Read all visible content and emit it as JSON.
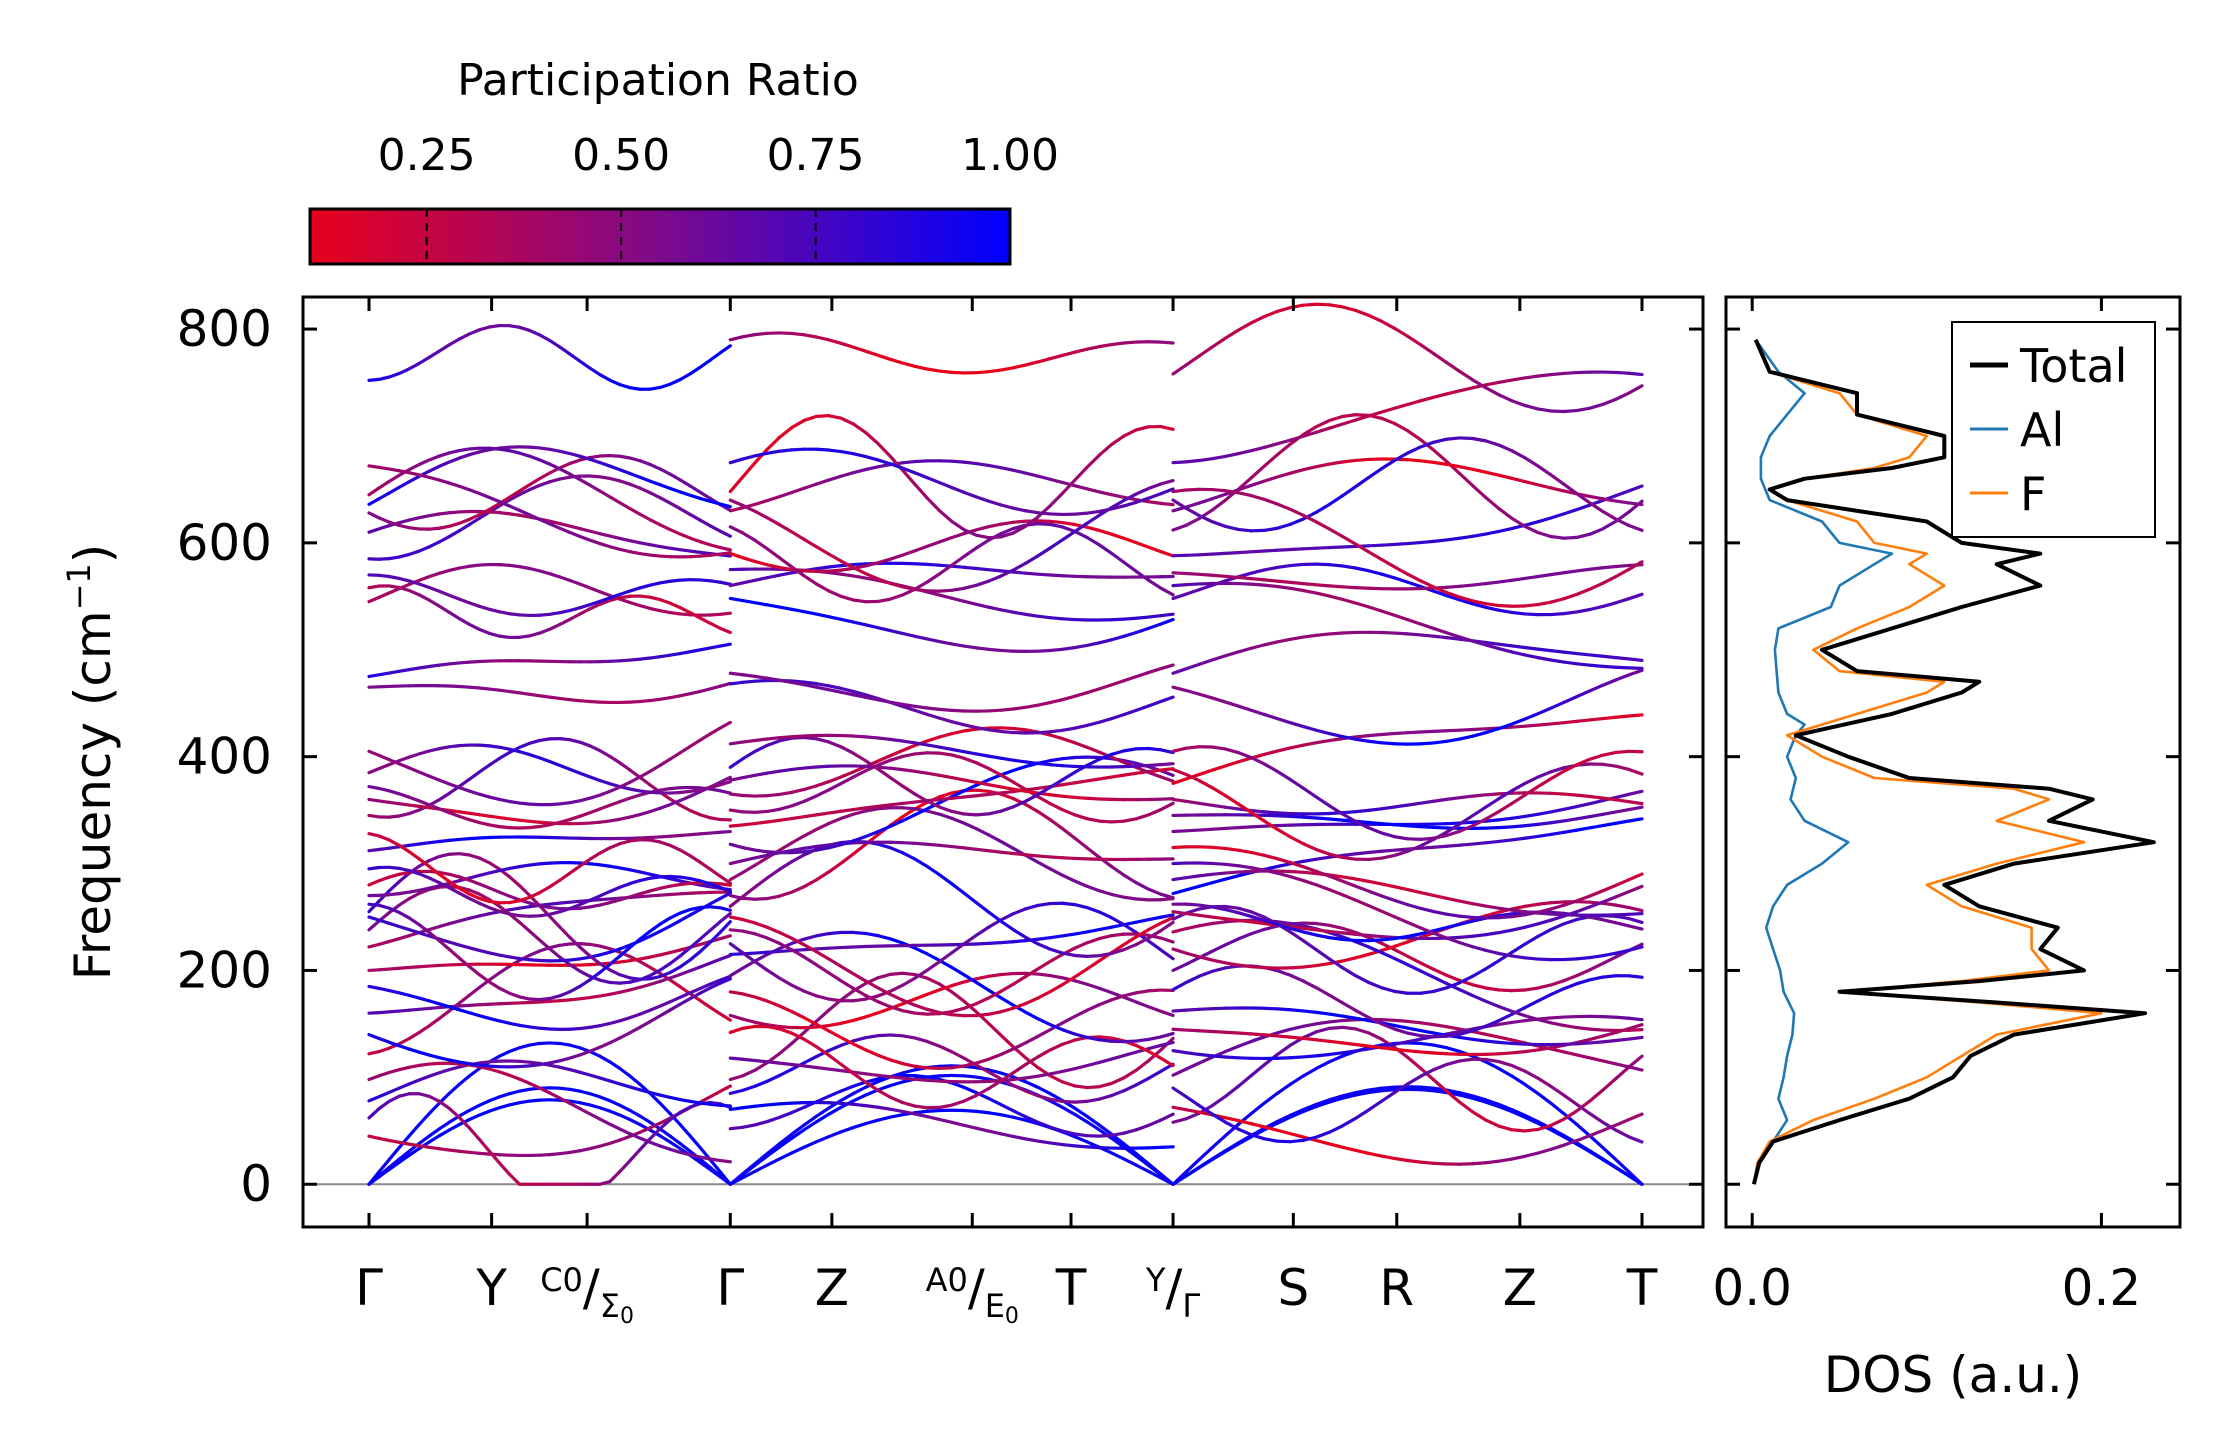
{
  "chart_data": [
    {
      "type": "line",
      "name": "phonon-band-structure",
      "ylabel": "Frequency (cm⁻¹)",
      "ylabel_base": "Frequency (cm",
      "ylabel_sup": "−1",
      "ylabel_close": ")",
      "ylim": [
        -40,
        830
      ],
      "yticks": [
        "0",
        "200",
        "400",
        "600",
        "800"
      ],
      "ytick_values": [
        0,
        200,
        400,
        600,
        800
      ],
      "k_path": [
        {
          "label": "Γ",
          "pos": 0.0
        },
        {
          "label": "Y",
          "pos": 0.262
        },
        {
          "label": "C₀/Σ₀",
          "main": "C",
          "sub": "0",
          "main2": "Σ",
          "sub2": "0",
          "pos": 0.466
        },
        {
          "label": "Γ",
          "pos": 0.772
        },
        {
          "label": "Z",
          "pos": 0.989
        },
        {
          "label": "A₀/E₀",
          "main": "A",
          "sub": "0",
          "main2": "E",
          "sub2": "0",
          "pos": 1.289
        },
        {
          "label": "T",
          "pos": 1.5
        },
        {
          "label": "Y/Γ",
          "main": "Y",
          "sub": "",
          "main2": "Γ",
          "sub2": "",
          "pos": 1.718
        },
        {
          "label": "S",
          "pos": 1.975
        },
        {
          "label": "R",
          "pos": 2.196
        },
        {
          "label": "Z",
          "pos": 2.459
        },
        {
          "label": "T",
          "pos": 2.72
        }
      ],
      "segments": [
        [
          0,
          0.772
        ],
        [
          0.772,
          1.718
        ],
        [
          1.718,
          2.72
        ]
      ],
      "segment_start_freqs": [
        [
          0,
          0,
          0,
          45,
          62,
          78,
          98,
          122,
          140,
          160,
          185,
          200,
          222,
          238,
          250,
          255,
          262,
          270,
          280,
          295,
          312,
          328,
          345,
          360,
          372,
          385,
          405,
          465,
          475,
          545,
          558,
          570,
          585,
          610,
          628,
          636,
          645,
          672,
          752
        ],
        [
          0,
          0,
          0,
          52,
          70,
          85,
          98,
          118,
          142,
          158,
          180,
          195,
          215,
          225,
          238,
          250,
          260,
          270,
          285,
          300,
          318,
          335,
          350,
          365,
          378,
          390,
          412,
          468,
          478,
          548,
          560,
          575,
          590,
          615,
          630,
          640,
          648,
          675,
          790
        ],
        [
          0,
          0,
          0,
          58,
          72,
          90,
          102,
          125,
          145,
          162,
          182,
          200,
          220,
          236,
          248,
          255,
          262,
          272,
          285,
          300,
          315,
          330,
          345,
          360,
          375,
          388,
          405,
          465,
          478,
          548,
          560,
          572,
          588,
          612,
          630,
          640,
          648,
          675,
          758
        ]
      ],
      "colormap": {
        "title": "Participation Ratio",
        "low_color": "#e8001d",
        "high_color": "#0000ff",
        "min": 0.1,
        "max": 1.0,
        "ticks": [
          "0.25",
          "0.50",
          "0.75",
          "1.00"
        ],
        "tick_values": [
          0.25,
          0.5,
          0.75,
          1.0
        ]
      }
    },
    {
      "type": "line",
      "name": "phonon-dos",
      "xlabel": "DOS (a.u.)",
      "xlim": [
        -0.015,
        0.245
      ],
      "xticks": [
        "0.0",
        "0.2"
      ],
      "xtick_values": [
        0.0,
        0.2
      ],
      "series": [
        {
          "name": "Total",
          "color": "#000000",
          "freq": [
            0,
            20,
            40,
            60,
            80,
            100,
            120,
            140,
            160,
            170,
            180,
            190,
            200,
            220,
            240,
            260,
            280,
            300,
            320,
            340,
            360,
            370,
            380,
            400,
            420,
            440,
            460,
            470,
            480,
            500,
            520,
            540,
            560,
            580,
            590,
            600,
            620,
            640,
            650,
            660,
            670,
            680,
            700,
            720,
            740,
            760,
            790
          ],
          "values": [
            0.001,
            0.004,
            0.012,
            0.05,
            0.09,
            0.115,
            0.125,
            0.15,
            0.225,
            0.14,
            0.05,
            0.13,
            0.19,
            0.165,
            0.175,
            0.13,
            0.11,
            0.15,
            0.23,
            0.17,
            0.195,
            0.17,
            0.09,
            0.055,
            0.025,
            0.08,
            0.12,
            0.13,
            0.06,
            0.04,
            0.08,
            0.12,
            0.165,
            0.14,
            0.165,
            0.12,
            0.1,
            0.02,
            0.01,
            0.03,
            0.08,
            0.11,
            0.11,
            0.06,
            0.06,
            0.01,
            0.002
          ]
        },
        {
          "name": "Al",
          "color": "#1f77b4",
          "freq": [
            0,
            20,
            40,
            60,
            80,
            100,
            120,
            140,
            160,
            180,
            200,
            220,
            240,
            260,
            280,
            300,
            320,
            340,
            360,
            380,
            400,
            420,
            430,
            440,
            460,
            480,
            500,
            520,
            540,
            560,
            580,
            590,
            600,
            620,
            640,
            660,
            680,
            700,
            720,
            740,
            760,
            790
          ],
          "values": [
            0.001,
            0.004,
            0.012,
            0.02,
            0.015,
            0.018,
            0.02,
            0.023,
            0.024,
            0.018,
            0.016,
            0.012,
            0.008,
            0.012,
            0.02,
            0.04,
            0.055,
            0.03,
            0.022,
            0.025,
            0.02,
            0.025,
            0.03,
            0.02,
            0.015,
            0.014,
            0.013,
            0.015,
            0.045,
            0.05,
            0.07,
            0.08,
            0.05,
            0.04,
            0.01,
            0.005,
            0.005,
            0.01,
            0.02,
            0.03,
            0.015,
            0.002
          ]
        },
        {
          "name": "F",
          "color": "#ff7f0e",
          "freq": [
            0,
            20,
            40,
            60,
            80,
            100,
            120,
            140,
            160,
            170,
            180,
            190,
            200,
            220,
            240,
            260,
            280,
            300,
            320,
            340,
            360,
            370,
            380,
            400,
            420,
            440,
            460,
            470,
            480,
            500,
            520,
            540,
            560,
            580,
            590,
            600,
            620,
            640,
            650,
            660,
            670,
            680,
            700,
            720,
            740,
            760,
            790
          ],
          "values": [
            0.001,
            0.003,
            0.01,
            0.035,
            0.07,
            0.1,
            0.12,
            0.14,
            0.2,
            0.13,
            0.05,
            0.12,
            0.17,
            0.16,
            0.16,
            0.12,
            0.1,
            0.14,
            0.19,
            0.14,
            0.17,
            0.15,
            0.07,
            0.04,
            0.02,
            0.06,
            0.1,
            0.11,
            0.05,
            0.035,
            0.06,
            0.09,
            0.11,
            0.09,
            0.1,
            0.07,
            0.06,
            0.02,
            0.01,
            0.03,
            0.07,
            0.09,
            0.1,
            0.06,
            0.05,
            0.01,
            0.002
          ]
        }
      ]
    }
  ]
}
